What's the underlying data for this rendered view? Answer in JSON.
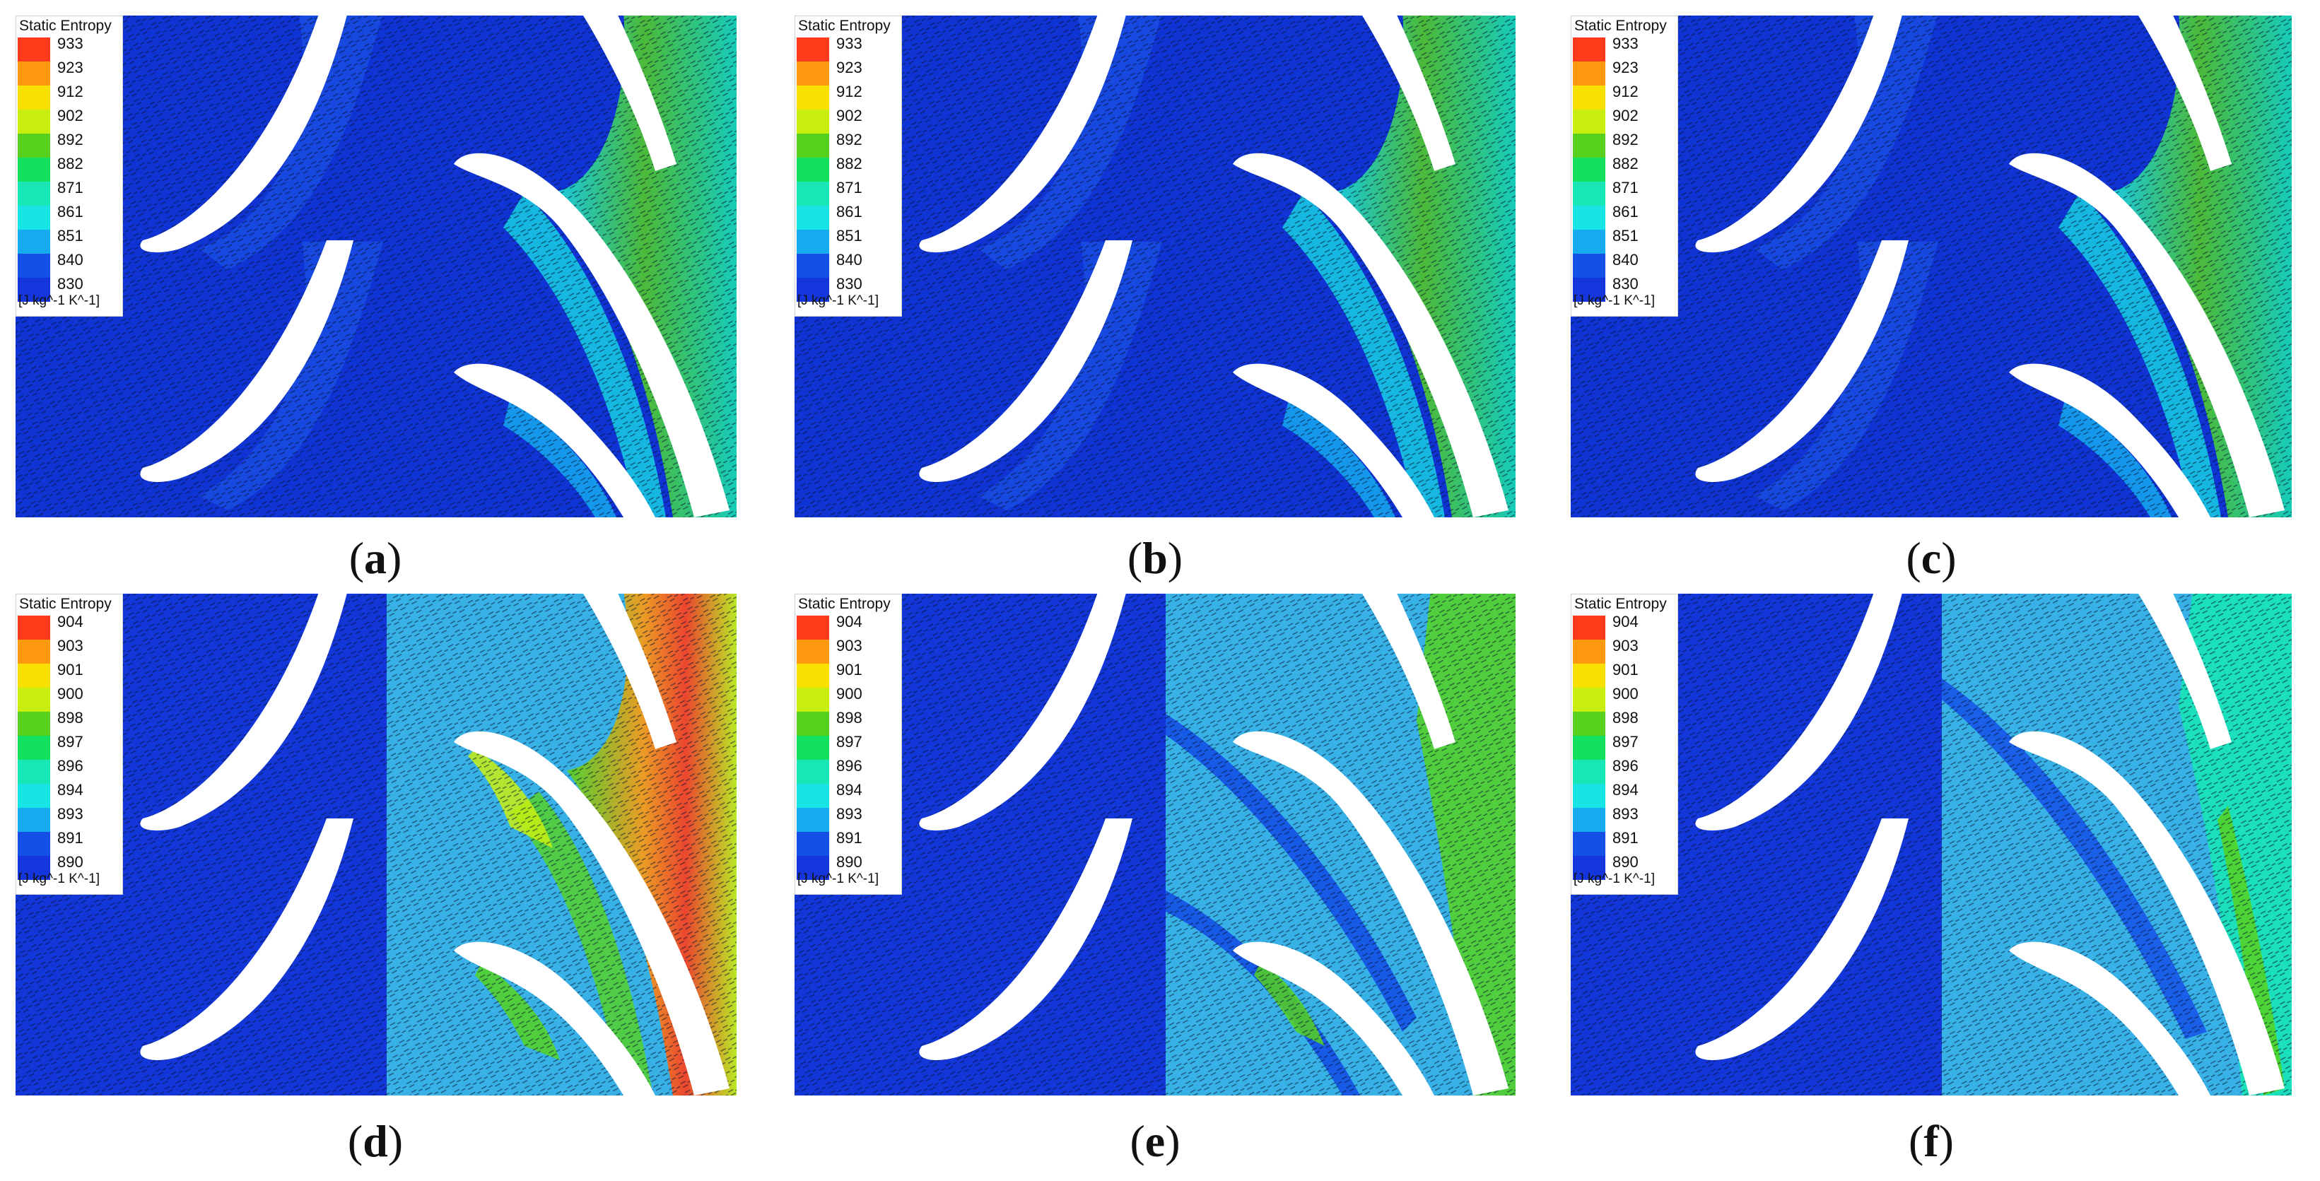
{
  "legend_title": "Static Entropy",
  "units": "[J kg^-1 K^-1]",
  "scale_top": [
    "933",
    "923",
    "912",
    "902",
    "892",
    "882",
    "871",
    "861",
    "851",
    "840",
    "830"
  ],
  "scale_bottom": [
    "904",
    "903",
    "901",
    "900",
    "898",
    "897",
    "896",
    "894",
    "893",
    "891",
    "890"
  ],
  "colors": {
    "scale": [
      "#ff3a1a",
      "#ff9a10",
      "#f8e000",
      "#c8ee10",
      "#56d21e",
      "#14e060",
      "#18e6b4",
      "#18e4e6",
      "#16aaf0",
      "#1450e6",
      "#1436dc"
    ],
    "background_blue": "#1236d8",
    "light_blue_field": "#38b2e6",
    "blade": "#ffffff"
  },
  "panels": [
    {
      "id": "a",
      "caption": "(a)"
    },
    {
      "id": "b",
      "caption": "(b)"
    },
    {
      "id": "c",
      "caption": "(c)"
    },
    {
      "id": "d",
      "caption": "(d)"
    },
    {
      "id": "e",
      "caption": "(e)"
    },
    {
      "id": "f",
      "caption": "(f)"
    }
  ]
}
